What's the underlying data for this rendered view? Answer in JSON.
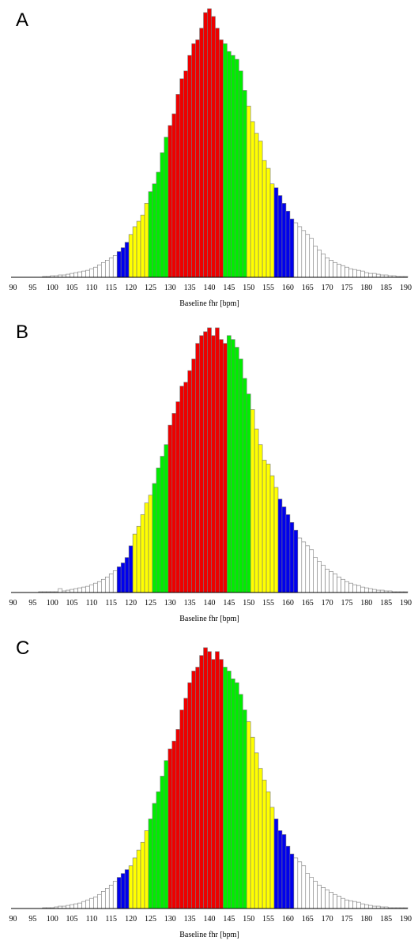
{
  "chart_data": [
    {
      "type": "bar",
      "panel_label": "A",
      "xlabel": "Baseline fhr [bpm]",
      "ylabel": "",
      "x_start": 90,
      "x_step": 1,
      "xlim": [
        90,
        191
      ],
      "xticks": [
        90,
        95,
        100,
        105,
        110,
        115,
        120,
        125,
        130,
        135,
        140,
        145,
        150,
        155,
        160,
        165,
        170,
        175,
        180,
        185,
        190
      ],
      "ylim": [
        0,
        345
      ],
      "grid": false,
      "legend": "none",
      "colors": {
        "none": "#ffffff",
        "blue": "#0000ee",
        "yellow": "#ffff00",
        "green": "#00ee00",
        "red": "#ee0000",
        "outline": "#777777"
      },
      "values": [
        0,
        0,
        0,
        0,
        0,
        0,
        0,
        0,
        1,
        1,
        2,
        2,
        3,
        3,
        4,
        5,
        6,
        7,
        8,
        9,
        11,
        13,
        16,
        19,
        22,
        25,
        28,
        33,
        38,
        45,
        55,
        65,
        72,
        80,
        95,
        110,
        120,
        135,
        160,
        180,
        195,
        210,
        235,
        255,
        265,
        285,
        300,
        305,
        320,
        340,
        345,
        335,
        320,
        305,
        300,
        290,
        285,
        280,
        265,
        240,
        220,
        200,
        185,
        175,
        150,
        140,
        120,
        115,
        105,
        95,
        85,
        75,
        70,
        65,
        60,
        55,
        50,
        40,
        35,
        30,
        25,
        22,
        19,
        17,
        15,
        13,
        11,
        10,
        9,
        8,
        6,
        5,
        5,
        4,
        3,
        3,
        2,
        2,
        1,
        1,
        1
      ],
      "color_zones": [
        {
          "from": 90,
          "to": 116,
          "color": "none"
        },
        {
          "from": 117,
          "to": 119,
          "color": "blue"
        },
        {
          "from": 120,
          "to": 124,
          "color": "yellow"
        },
        {
          "from": 125,
          "to": 129,
          "color": "green"
        },
        {
          "from": 130,
          "to": 143,
          "color": "red"
        },
        {
          "from": 144,
          "to": 149,
          "color": "green"
        },
        {
          "from": 150,
          "to": 156,
          "color": "yellow"
        },
        {
          "from": 157,
          "to": 161,
          "color": "blue"
        },
        {
          "from": 162,
          "to": 190,
          "color": "none"
        }
      ]
    },
    {
      "type": "bar",
      "panel_label": "B",
      "xlabel": "Baseline fhr [bpm]",
      "ylabel": "",
      "x_start": 90,
      "x_step": 1,
      "xlim": [
        90,
        191
      ],
      "xticks": [
        90,
        95,
        100,
        105,
        110,
        115,
        120,
        125,
        130,
        135,
        140,
        145,
        150,
        155,
        160,
        165,
        170,
        175,
        180,
        185,
        190
      ],
      "ylim": [
        0,
        345
      ],
      "grid": false,
      "legend": "none",
      "colors": {
        "none": "#ffffff",
        "blue": "#0000ee",
        "yellow": "#ffff00",
        "green": "#00ee00",
        "red": "#ee0000",
        "outline": "#777777"
      },
      "values": [
        0,
        0,
        0,
        0,
        0,
        0,
        0,
        1,
        1,
        1,
        1,
        1,
        5,
        2,
        3,
        4,
        5,
        6,
        7,
        8,
        10,
        12,
        14,
        17,
        20,
        24,
        28,
        33,
        38,
        45,
        60,
        75,
        85,
        100,
        115,
        125,
        140,
        160,
        175,
        190,
        215,
        230,
        245,
        265,
        270,
        285,
        300,
        320,
        330,
        335,
        340,
        330,
        340,
        325,
        320,
        330,
        325,
        315,
        300,
        275,
        255,
        235,
        210,
        190,
        170,
        165,
        150,
        135,
        120,
        110,
        100,
        90,
        80,
        70,
        65,
        60,
        55,
        45,
        40,
        35,
        30,
        27,
        24,
        20,
        17,
        14,
        12,
        10,
        9,
        7,
        6,
        5,
        4,
        3,
        3,
        2,
        2,
        1,
        1,
        1,
        1
      ],
      "color_zones": [
        {
          "from": 90,
          "to": 116,
          "color": "none"
        },
        {
          "from": 117,
          "to": 120,
          "color": "blue"
        },
        {
          "from": 121,
          "to": 125,
          "color": "yellow"
        },
        {
          "from": 126,
          "to": 129,
          "color": "green"
        },
        {
          "from": 130,
          "to": 144,
          "color": "red"
        },
        {
          "from": 145,
          "to": 150,
          "color": "green"
        },
        {
          "from": 151,
          "to": 157,
          "color": "yellow"
        },
        {
          "from": 158,
          "to": 162,
          "color": "blue"
        },
        {
          "from": 163,
          "to": 190,
          "color": "none"
        }
      ]
    },
    {
      "type": "bar",
      "panel_label": "C",
      "xlabel": "Baseline fhr [bpm]",
      "ylabel": "",
      "x_start": 90,
      "x_step": 1,
      "xlim": [
        90,
        191
      ],
      "xticks": [
        90,
        95,
        100,
        105,
        110,
        115,
        120,
        125,
        130,
        135,
        140,
        145,
        150,
        155,
        160,
        165,
        170,
        175,
        180,
        185,
        190
      ],
      "ylim": [
        0,
        345
      ],
      "grid": false,
      "legend": "none",
      "colors": {
        "none": "#ffffff",
        "blue": "#0000ee",
        "yellow": "#ffff00",
        "green": "#00ee00",
        "red": "#ee0000",
        "outline": "#777777"
      },
      "values": [
        0,
        0,
        0,
        0,
        0,
        0,
        0,
        0,
        1,
        1,
        1,
        2,
        3,
        3,
        4,
        5,
        6,
        7,
        9,
        11,
        13,
        15,
        18,
        22,
        26,
        30,
        35,
        40,
        45,
        50,
        55,
        65,
        75,
        85,
        100,
        115,
        135,
        150,
        170,
        190,
        205,
        215,
        230,
        255,
        270,
        290,
        305,
        310,
        325,
        335,
        330,
        320,
        330,
        320,
        310,
        305,
        295,
        290,
        275,
        255,
        240,
        220,
        200,
        180,
        165,
        150,
        130,
        115,
        100,
        95,
        80,
        70,
        65,
        60,
        55,
        45,
        40,
        35,
        30,
        27,
        24,
        21,
        18,
        16,
        13,
        11,
        10,
        9,
        8,
        6,
        5,
        4,
        3,
        3,
        2,
        2,
        1,
        1,
        1,
        1,
        1
      ],
      "color_zones": [
        {
          "from": 90,
          "to": 116,
          "color": "none"
        },
        {
          "from": 117,
          "to": 119,
          "color": "blue"
        },
        {
          "from": 120,
          "to": 124,
          "color": "yellow"
        },
        {
          "from": 125,
          "to": 129,
          "color": "green"
        },
        {
          "from": 130,
          "to": 143,
          "color": "red"
        },
        {
          "from": 144,
          "to": 149,
          "color": "green"
        },
        {
          "from": 150,
          "to": 156,
          "color": "yellow"
        },
        {
          "from": 157,
          "to": 161,
          "color": "blue"
        },
        {
          "from": 162,
          "to": 190,
          "color": "none"
        }
      ]
    }
  ]
}
